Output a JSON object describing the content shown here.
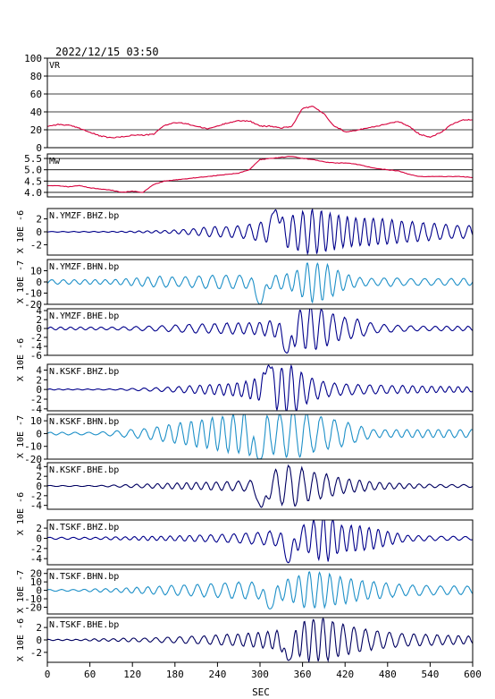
{
  "title": "2022/12/15 03:50",
  "x_label": "SEC",
  "chart_data": [
    {
      "type": "line",
      "panel_label": "VR",
      "ylim": [
        0,
        100
      ],
      "yticks": [
        0,
        20,
        40,
        60,
        80,
        100
      ],
      "grid": true,
      "color": "#d6003c",
      "x": [
        0,
        15,
        30,
        45,
        60,
        75,
        90,
        105,
        120,
        135,
        150,
        165,
        180,
        195,
        210,
        225,
        240,
        255,
        270,
        285,
        300,
        315,
        330,
        345,
        360,
        375,
        390,
        405,
        420,
        435,
        450,
        465,
        480,
        495,
        510,
        525,
        540,
        555,
        570,
        585,
        600
      ],
      "y": [
        24,
        26,
        25,
        22,
        17,
        13,
        11,
        12,
        14,
        14,
        15,
        25,
        28,
        27,
        24,
        21,
        24,
        28,
        30,
        30,
        24,
        24,
        22,
        24,
        44,
        46,
        38,
        24,
        18,
        19,
        22,
        24,
        27,
        29,
        24,
        15,
        12,
        17,
        26,
        31,
        31
      ]
    },
    {
      "type": "line",
      "panel_label": "Mw",
      "ylim": [
        3.8,
        5.7
      ],
      "yticks": [
        4.0,
        4.5,
        5.0,
        5.5
      ],
      "grid": true,
      "color": "#d6003c",
      "x": [
        0,
        15,
        30,
        45,
        60,
        75,
        90,
        105,
        120,
        135,
        150,
        165,
        180,
        195,
        210,
        225,
        240,
        255,
        270,
        285,
        300,
        315,
        330,
        345,
        360,
        375,
        390,
        405,
        420,
        435,
        450,
        465,
        480,
        495,
        510,
        525,
        540,
        555,
        570,
        585,
        600
      ],
      "y": [
        4.3,
        4.3,
        4.25,
        4.3,
        4.2,
        4.15,
        4.1,
        4.0,
        4.05,
        4.0,
        4.35,
        4.5,
        4.55,
        4.6,
        4.65,
        4.7,
        4.75,
        4.8,
        4.85,
        5.0,
        5.45,
        5.5,
        5.55,
        5.6,
        5.5,
        5.45,
        5.35,
        5.3,
        5.3,
        5.25,
        5.15,
        5.05,
        5.0,
        4.95,
        4.8,
        4.7,
        4.7,
        4.7,
        4.7,
        4.7,
        4.65
      ]
    },
    {
      "type": "line",
      "panel_label": "N.YMZF.BHZ.bp",
      "ylim": [
        -3.6,
        3.6
      ],
      "yticks": [
        -2,
        0,
        2
      ],
      "color": "#00008b",
      "amp": [
        0.05,
        0.05,
        0.06,
        0.06,
        0.07,
        0.1,
        0.15,
        0.2,
        0.3,
        0.5,
        0.8,
        0.8,
        1.0,
        1.5,
        2.0,
        2.6,
        3.4,
        3.1,
        2.4,
        2.1,
        2.1,
        1.9,
        1.6,
        1.4,
        1.2,
        1.0,
        1.0
      ],
      "period": 14.2,
      "peak_t": 322,
      "peak_amp": 3.4
    },
    {
      "type": "line",
      "panel_label": "N.YMZF.BHN.bp",
      "ylim": [
        -20,
        20
      ],
      "yticks": [
        -20,
        -10,
        0,
        10
      ],
      "color": "#1e90c8",
      "amp": [
        2,
        2,
        2,
        2,
        2,
        3,
        4,
        5,
        4,
        5,
        6,
        6,
        6,
        6,
        6,
        8,
        18,
        16,
        8,
        4,
        3,
        4,
        3,
        3,
        3,
        3,
        3
      ],
      "period": 16.8,
      "peak_t": 300,
      "peak_amp": -20
    },
    {
      "type": "line",
      "panel_label": "N.YMZF.BHE.bp",
      "ylim": [
        -6,
        4.4
      ],
      "yticks": [
        -6,
        -4,
        -2,
        0,
        2,
        4
      ],
      "color": "#00008b",
      "amp": [
        0.3,
        0.3,
        0.3,
        0.3,
        0.3,
        0.4,
        0.5,
        0.6,
        0.8,
        1.0,
        1.0,
        1.2,
        1.2,
        1.4,
        2.0,
        3.5,
        5.0,
        4.0,
        2.5,
        2.0,
        1.0,
        0.8,
        0.6,
        0.5,
        0.5,
        0.5,
        0.5
      ],
      "period": 16.5,
      "peak_t": 338,
      "peak_amp": -5.5
    },
    {
      "type": "line",
      "panel_label": "N.KSKF.BHZ.bp",
      "ylim": [
        -4.4,
        5.2
      ],
      "yticks": [
        -4,
        -2,
        0,
        2,
        4
      ],
      "color": "#00008b",
      "amp": [
        0.1,
        0.1,
        0.1,
        0.1,
        0.1,
        0.2,
        0.3,
        0.4,
        0.6,
        0.8,
        1.0,
        1.2,
        1.5,
        2.5,
        4.5,
        4.8,
        2.5,
        1.5,
        1.2,
        1.0,
        0.9,
        0.8,
        0.8,
        0.7,
        0.6,
        0.6,
        0.5
      ],
      "period": 14.5,
      "peak_t": 312,
      "peak_amp": 5.0
    },
    {
      "type": "line",
      "panel_label": "N.KSKF.BHN.bp",
      "ylim": [
        -20,
        15
      ],
      "yticks": [
        -20,
        -10,
        0,
        10
      ],
      "color": "#1e90c8",
      "amp": [
        1,
        1,
        1,
        1,
        2,
        3,
        4,
        6,
        8,
        10,
        12,
        14,
        16,
        18,
        15,
        20,
        15,
        12,
        10,
        6,
        3,
        3,
        3,
        3,
        3,
        3,
        3
      ],
      "period": 17.2,
      "peak_t": 298,
      "peak_amp": -20
    },
    {
      "type": "line",
      "panel_label": "N.KSKF.BHE.bp",
      "ylim": [
        -4.8,
        4.8
      ],
      "yticks": [
        -4,
        -2,
        0,
        2,
        4
      ],
      "color": "#000060",
      "amp": [
        0.1,
        0.1,
        0.1,
        0.1,
        0.2,
        0.3,
        0.4,
        0.5,
        0.6,
        0.7,
        0.8,
        0.9,
        1.0,
        1.5,
        3.5,
        4.5,
        3.0,
        2.5,
        1.5,
        1.2,
        0.8,
        0.6,
        0.5,
        0.4,
        0.3,
        0.3,
        0.3
      ],
      "period": 16.0,
      "peak_t": 302,
      "peak_amp": -4.4
    },
    {
      "type": "line",
      "panel_label": "N.TSKF.BHZ.bp",
      "ylim": [
        -5.2,
        3.6
      ],
      "yticks": [
        -4,
        -2,
        0,
        2
      ],
      "color": "#00008b",
      "amp": [
        0.2,
        0.2,
        0.2,
        0.2,
        0.3,
        0.3,
        0.4,
        0.4,
        0.5,
        0.6,
        0.7,
        0.8,
        1.0,
        1.2,
        1.5,
        2.0,
        3.0,
        4.8,
        2.5,
        2.5,
        2.0,
        1.2,
        0.6,
        0.5,
        0.4,
        0.4,
        0.3
      ],
      "period": 14.8,
      "peak_t": 340,
      "peak_amp": -4.8
    },
    {
      "type": "line",
      "panel_label": "N.TSKF.BHN.bp",
      "ylim": [
        -28,
        25
      ],
      "yticks": [
        -20,
        -10,
        0,
        10,
        20
      ],
      "color": "#1e90c8",
      "amp": [
        1,
        1,
        1,
        2,
        2,
        3,
        4,
        5,
        6,
        7,
        8,
        9,
        10,
        10,
        10,
        14,
        22,
        20,
        16,
        12,
        10,
        8,
        6,
        6,
        5,
        5,
        5
      ],
      "period": 17.0,
      "peak_t": 314,
      "peak_amp": -22
    },
    {
      "type": "line",
      "panel_label": "N.TSKF.BHE.bp",
      "ylim": [
        -3.6,
        3.6
      ],
      "yticks": [
        -2,
        0,
        2
      ],
      "color": "#000060",
      "amp": [
        0.1,
        0.1,
        0.1,
        0.2,
        0.2,
        0.3,
        0.3,
        0.4,
        0.5,
        0.6,
        0.7,
        0.9,
        1.0,
        1.2,
        1.5,
        2.0,
        3.4,
        3.5,
        2.5,
        2.0,
        1.5,
        1.2,
        1.0,
        0.9,
        0.8,
        0.7,
        0.6
      ],
      "period": 15.0,
      "peak_t": 340,
      "peak_amp": -3.3
    }
  ],
  "x_axis": {
    "range": [
      0,
      600
    ],
    "ticks": [
      0,
      60,
      120,
      180,
      240,
      300,
      360,
      420,
      480,
      540,
      600
    ]
  },
  "side_labels": [
    {
      "text": "X 10E -6",
      "rows": [
        2
      ]
    },
    {
      "text": "X 10E -7",
      "rows": [
        3
      ]
    },
    {
      "text": "X 10E -6",
      "rows": [
        4,
        5
      ]
    },
    {
      "text": "X 10E -7",
      "rows": [
        6
      ]
    },
    {
      "text": "X 10E -6",
      "rows": [
        7,
        8
      ]
    },
    {
      "text": "X 10E -7",
      "rows": [
        9
      ]
    },
    {
      "text": "X 10E -6",
      "rows": [
        10
      ]
    }
  ]
}
